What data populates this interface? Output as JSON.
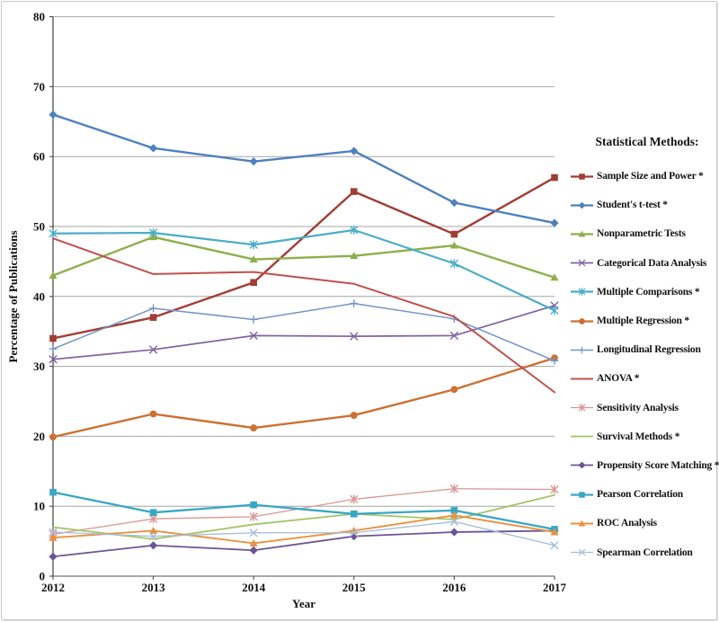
{
  "chart_data": {
    "type": "line",
    "xlabel": "Year",
    "ylabel": "Percentage of Publications",
    "x": [
      "2012",
      "2013",
      "2014",
      "2015",
      "2016",
      "2017"
    ],
    "ylim": [
      0,
      80
    ],
    "yticks": [
      0,
      10,
      20,
      30,
      40,
      50,
      60,
      70,
      80
    ],
    "grid": true,
    "legend_title": "Statistical Methods:",
    "legend_position": "right",
    "series": [
      {
        "name": "Sample Size and Power *",
        "color": "#A13D35",
        "marker": "square",
        "line_width": 2.4,
        "values": [
          34.0,
          37.0,
          42.0,
          55.0,
          48.9,
          57.0
        ]
      },
      {
        "name": "Student's t-test *",
        "color": "#4F81BD",
        "marker": "diamond",
        "line_width": 2.4,
        "values": [
          66.0,
          61.2,
          59.3,
          60.8,
          53.4,
          50.5
        ]
      },
      {
        "name": "Nonparametric Tests",
        "color": "#8FAF4C",
        "marker": "triangle",
        "line_width": 2.4,
        "values": [
          43.0,
          48.5,
          45.3,
          45.8,
          47.3,
          42.7
        ]
      },
      {
        "name": "Categorical Data Analysis",
        "color": "#7D62A1",
        "marker": "x",
        "line_width": 1.7,
        "values": [
          31.0,
          32.4,
          34.4,
          34.3,
          34.4,
          38.7
        ]
      },
      {
        "name": "Multiple Comparisons *",
        "color": "#4BACC6",
        "marker": "star",
        "line_width": 2.2,
        "values": [
          49.0,
          49.1,
          47.4,
          49.5,
          44.7,
          38.0
        ]
      },
      {
        "name": "Multiple Regression *",
        "color": "#CC7033",
        "marker": "circle",
        "line_width": 2.4,
        "values": [
          19.9,
          23.2,
          21.2,
          23.0,
          26.7,
          31.2
        ]
      },
      {
        "name": "Longitudinal Regression",
        "color": "#7395C5",
        "marker": "plus",
        "line_width": 1.5,
        "values": [
          32.5,
          38.3,
          36.7,
          39.0,
          36.8,
          30.8
        ]
      },
      {
        "name": "ANOVA *",
        "color": "#C0504D",
        "marker": "none",
        "line_width": 2.0,
        "values": [
          48.3,
          43.2,
          43.5,
          41.8,
          37.1,
          26.3
        ]
      },
      {
        "name": "Sensitivity Analysis",
        "color": "#D99694",
        "marker": "star",
        "line_width": 1.3,
        "values": [
          6.0,
          8.2,
          8.5,
          11.0,
          12.5,
          12.4
        ]
      },
      {
        "name": "Survival Methods *",
        "color": "#A5C466",
        "marker": "none",
        "line_width": 1.8,
        "values": [
          7.0,
          5.3,
          7.4,
          8.9,
          8.1,
          11.6
        ]
      },
      {
        "name": "Propensity Score Matching *",
        "color": "#6B5693",
        "marker": "diamond",
        "line_width": 1.8,
        "values": [
          2.8,
          4.4,
          3.7,
          5.7,
          6.3,
          6.5
        ]
      },
      {
        "name": "Pearson Correlation",
        "color": "#38A7C4",
        "marker": "square",
        "line_width": 2.3,
        "values": [
          12.0,
          9.1,
          10.2,
          8.9,
          9.4,
          6.7
        ]
      },
      {
        "name": "ROC Analysis",
        "color": "#E8923F",
        "marker": "triangle",
        "line_width": 1.9,
        "values": [
          5.5,
          6.5,
          4.7,
          6.5,
          8.7,
          6.3
        ]
      },
      {
        "name": "Spearman Correlation",
        "color": "#A6BBD9",
        "marker": "x",
        "line_width": 1.3,
        "values": [
          6.3,
          5.7,
          6.2,
          6.2,
          7.8,
          4.4
        ]
      }
    ]
  },
  "colors": {
    "grid": "#A6A6A6",
    "axis_line": "#8C8C8C",
    "y_axis_line": "#404040",
    "text": "#111111",
    "frame_border": "#C9C9C9"
  }
}
